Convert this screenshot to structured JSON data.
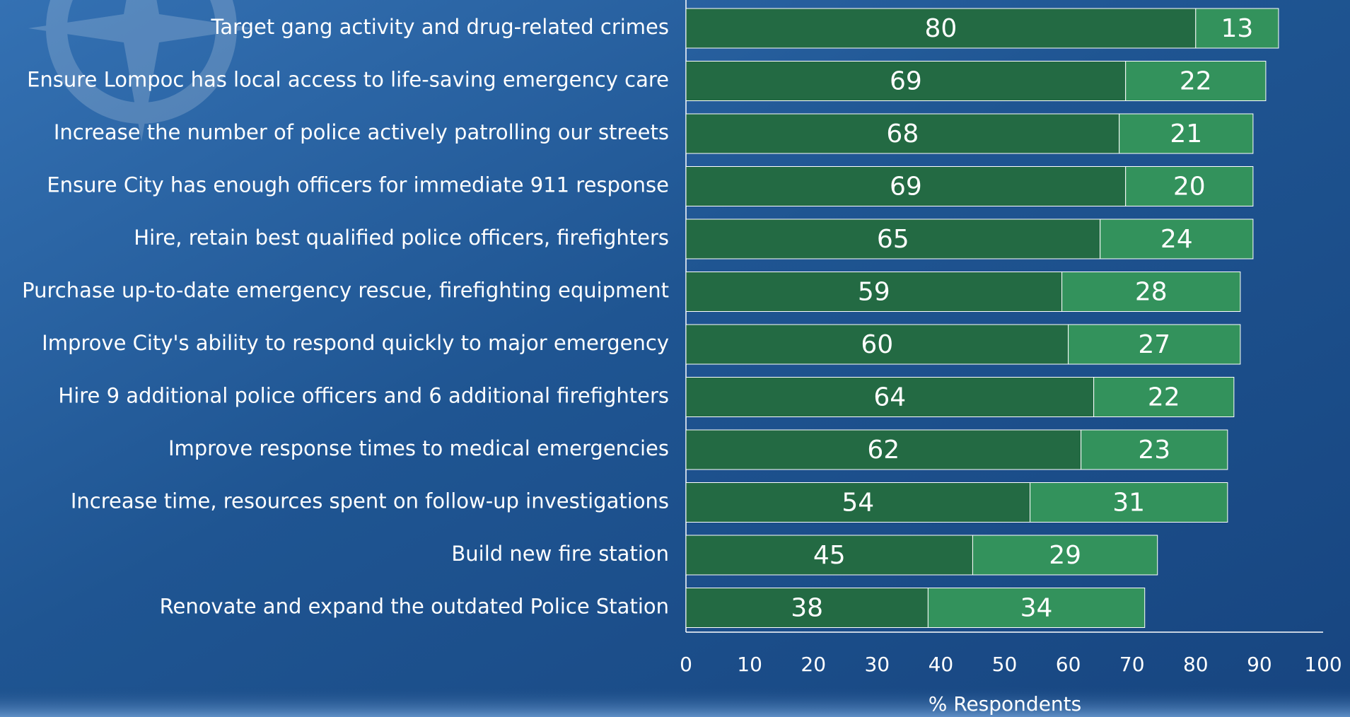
{
  "chart_data": {
    "type": "bar",
    "orientation": "horizontal",
    "stacked": true,
    "x_label": "% Respondents",
    "categories": [
      "Target gang activity and drug-related crimes",
      "Ensure Lompoc has local access to life-saving emergency care",
      "Increase the number of police actively patrolling our streets",
      "Ensure City has enough officers for immediate 911 response",
      "Hire, retain best qualified police officers, firefighters",
      "Purchase up-to-date emergency rescue, firefighting equipment",
      "Improve City's ability to respond quickly to major emergency",
      "Hire 9 additional police officers and 6 additional firefighters",
      "Improve response times to medical emergencies",
      "Increase time, resources spent on follow-up investigations",
      "Build new fire station",
      "Renovate and expand the outdated Police Station"
    ],
    "series": [
      {
        "color": "#236a43",
        "values": [
          80,
          69,
          68,
          69,
          65,
          59,
          60,
          64,
          62,
          54,
          45,
          38
        ]
      },
      {
        "color": "#33925c",
        "values": [
          13,
          22,
          21,
          20,
          24,
          28,
          27,
          22,
          23,
          31,
          29,
          34
        ]
      }
    ],
    "xlim": [
      0,
      100
    ],
    "xticks": [
      0,
      10,
      20,
      30,
      40,
      50,
      60,
      70,
      80,
      90,
      100
    ],
    "grid": false
  }
}
